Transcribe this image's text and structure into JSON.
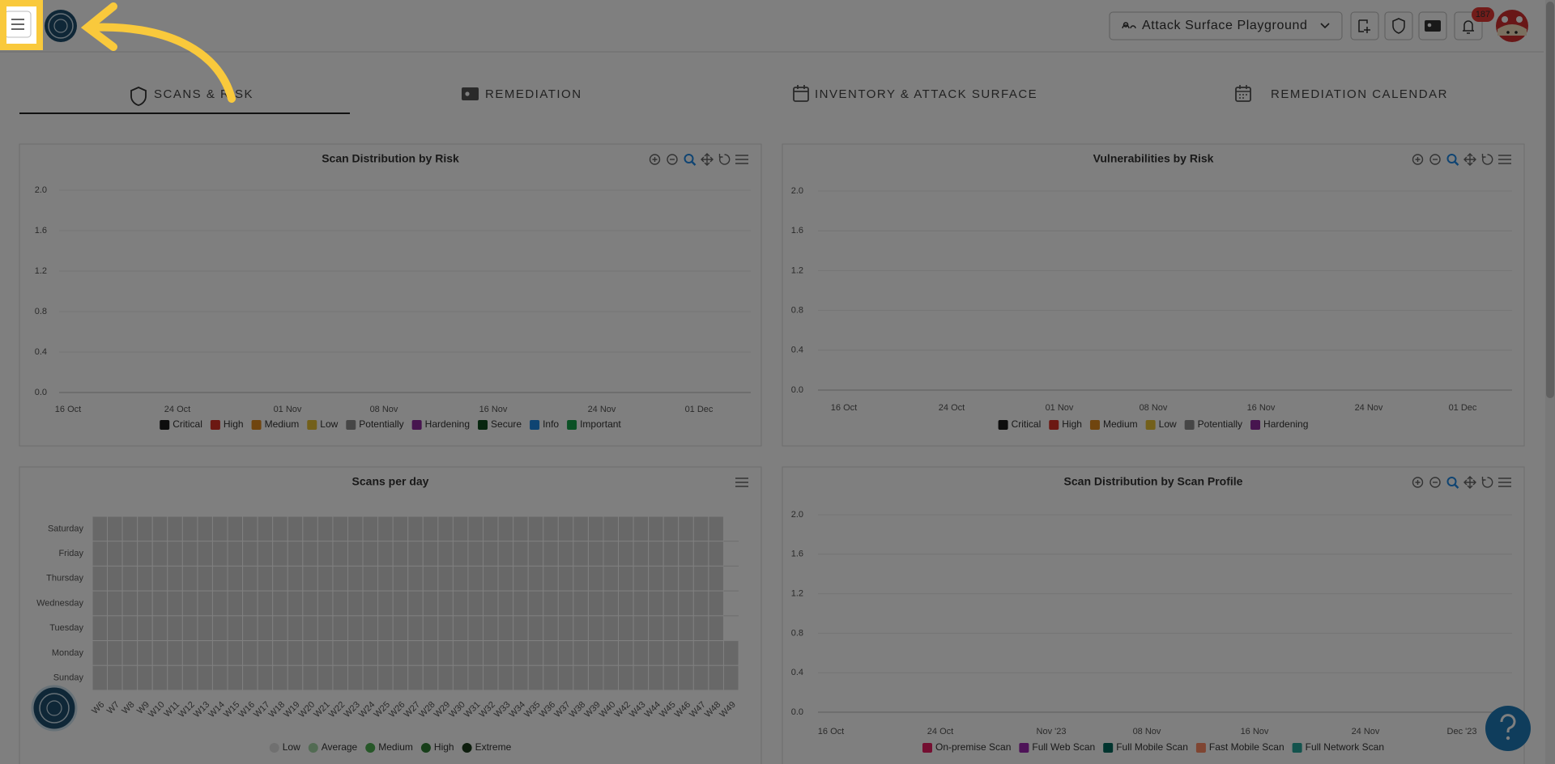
{
  "header": {
    "workspace": "Attack Surface Playground",
    "notification_count": "187"
  },
  "tabs": [
    "SCANS & RISK",
    "REMEDIATION",
    "INVENTORY & ATTACK SURFACE",
    "REMEDIATION CALENDAR"
  ],
  "panels": [
    {
      "title": "Scan Distribution by Risk",
      "y_labels": [
        "0.0",
        "0.4",
        "0.8",
        "1.2",
        "1.6",
        "2.0"
      ],
      "x_labels": [
        "16 Oct",
        "24 Oct",
        "01 Nov",
        "08 Nov",
        "16 Nov",
        "24 Nov",
        "01 Dec"
      ],
      "legend": [
        {
          "name": "Critical",
          "color": "#1a1a1a"
        },
        {
          "name": "High",
          "color": "#d93025"
        },
        {
          "name": "Medium",
          "color": "#e08a1e"
        },
        {
          "name": "Low",
          "color": "#e6c035"
        },
        {
          "name": "Potentially",
          "color": "#8c8c8c"
        },
        {
          "name": "Hardening",
          "color": "#8e2a9e"
        },
        {
          "name": "Secure",
          "color": "#0e4d1e"
        },
        {
          "name": "Info",
          "color": "#1e88e5"
        },
        {
          "name": "Important",
          "color": "#16a34a"
        }
      ]
    },
    {
      "title": "Vulnerabilities by Risk",
      "y_labels": [
        "0.0",
        "0.4",
        "0.8",
        "1.2",
        "1.6",
        "2.0"
      ],
      "x_labels": [
        "16 Oct",
        "24 Oct",
        "01 Nov",
        "08 Nov",
        "16 Nov",
        "24 Nov",
        "01 Dec"
      ],
      "legend": [
        {
          "name": "Critical",
          "color": "#1a1a1a"
        },
        {
          "name": "High",
          "color": "#d93025"
        },
        {
          "name": "Medium",
          "color": "#e08a1e"
        },
        {
          "name": "Low",
          "color": "#e6c035"
        },
        {
          "name": "Potentially",
          "color": "#8c8c8c"
        },
        {
          "name": "Hardening",
          "color": "#8e2a9e"
        }
      ]
    },
    {
      "title": "Scans per day",
      "days": [
        "Saturday",
        "Friday",
        "Thursday",
        "Wednesday",
        "Tuesday",
        "Monday",
        "Sunday"
      ],
      "weeks": [
        "W6",
        "W7",
        "W8",
        "W9",
        "W10",
        "W11",
        "W12",
        "W13",
        "W14",
        "W15",
        "W16",
        "W17",
        "W18",
        "W19",
        "W20",
        "W21",
        "W22",
        "W23",
        "W24",
        "W25",
        "W26",
        "W27",
        "W28",
        "W29",
        "W30",
        "W31",
        "W32",
        "W33",
        "W34",
        "W35",
        "W36",
        "W37",
        "W38",
        "W39",
        "W40",
        "W42",
        "W43",
        "W44",
        "W45",
        "W46",
        "W47",
        "W48",
        "W49"
      ],
      "legend": [
        {
          "name": "Low",
          "color": "#e0e0e0"
        },
        {
          "name": "Average",
          "color": "#a5d6a7"
        },
        {
          "name": "Medium",
          "color": "#4caf50"
        },
        {
          "name": "High",
          "color": "#2e7d32"
        },
        {
          "name": "Extreme",
          "color": "#1b3a1b"
        }
      ]
    },
    {
      "title": "Scan Distribution by Scan Profile",
      "y_labels": [
        "0.0",
        "0.4",
        "0.8",
        "1.2",
        "1.6",
        "2.0"
      ],
      "x_labels": [
        "16 Oct",
        "24 Oct",
        "Nov '23",
        "08 Nov",
        "16 Nov",
        "24 Nov",
        "Dec '23"
      ],
      "legend": [
        {
          "name": "On-premise Scan",
          "color": "#e91e63"
        },
        {
          "name": "Full Web Scan",
          "color": "#9c27b0"
        },
        {
          "name": "Full Mobile Scan",
          "color": "#00695c"
        },
        {
          "name": "Fast Mobile Scan",
          "color": "#ff8a65"
        },
        {
          "name": "Full Network Scan",
          "color": "#26a69a"
        }
      ]
    }
  ]
}
